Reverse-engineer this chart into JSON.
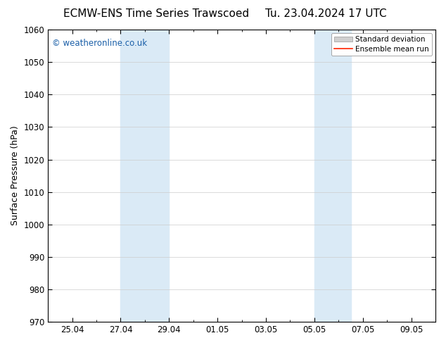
{
  "title": "ECMW-ENS Time Series Trawscoed",
  "title_right": "Tu. 23.04.2024 17 UTC",
  "ylabel": "Surface Pressure (hPa)",
  "ylim": [
    970,
    1060
  ],
  "yticks": [
    970,
    980,
    990,
    1000,
    1010,
    1020,
    1030,
    1040,
    1050,
    1060
  ],
  "x_tick_values": [
    0,
    2,
    4,
    6,
    8,
    10,
    12,
    14
  ],
  "x_tick_labels": [
    "25.04",
    "27.04",
    "29.04",
    "01.05",
    "03.05",
    "05.05",
    "07.05",
    "09.05"
  ],
  "xlim": [
    -1.0,
    15.0
  ],
  "shade_regions": [
    {
      "start": 2.0,
      "end": 4.0
    },
    {
      "start": 10.0,
      "end": 11.5
    }
  ],
  "shade_color": "#daeaf6",
  "background_color": "#ffffff",
  "watermark_text": "© weatheronline.co.uk",
  "watermark_color": "#1a5fa8",
  "legend_sd_color": "#d0d0d0",
  "legend_sd_edge": "#999999",
  "legend_mean_color": "#ff2200",
  "title_fontsize": 11,
  "axis_label_fontsize": 9,
  "tick_fontsize": 8.5,
  "grid_color": "#cccccc",
  "spine_color": "#000000"
}
